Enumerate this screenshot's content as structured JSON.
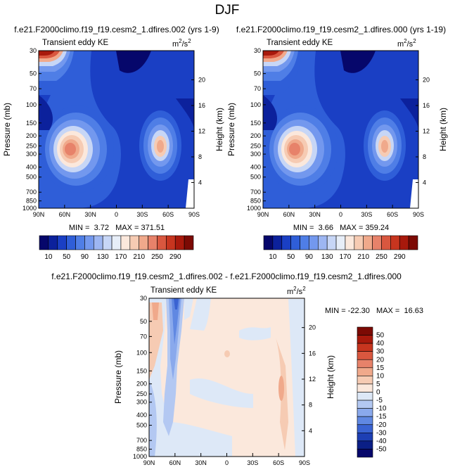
{
  "page": {
    "title": "DJF"
  },
  "chart_data": [
    {
      "type": "heatmap",
      "id": "top-left",
      "title": "f.e21.F2000climo.f19_f19.cesm2_1.dfires.002 (yrs 1-9)",
      "subtitle": "Transient eddy KE",
      "units_prefix": "m",
      "units_exp": "2",
      "units_suffix": "/s",
      "units_exp2": "2",
      "ylabel": "Pressure (mb)",
      "y2label": "Height (km)",
      "x_ticks": [
        "90N",
        "60N",
        "30N",
        "0",
        "30S",
        "60S",
        "90S"
      ],
      "y_ticks": [
        "30",
        "50",
        "70",
        "100",
        "150",
        "200",
        "250",
        "300",
        "400",
        "500",
        "700",
        "850",
        "1000"
      ],
      "y2_ticks": [
        "20",
        "16",
        "12",
        "8",
        "4"
      ],
      "stats": "MIN =  3.72   MAX = 371.51",
      "min": 3.72,
      "max": 371.51
    },
    {
      "type": "heatmap",
      "id": "top-right",
      "title": "f.e21.F2000climo.f19_f19.cesm2_1.dfires.000 (yrs 1-19)",
      "subtitle": "Transient eddy KE",
      "units_prefix": "m",
      "units_exp": "2",
      "units_suffix": "/s",
      "units_exp2": "2",
      "ylabel": "Pressure (mb)",
      "y2label": "Height (km)",
      "x_ticks": [
        "90N",
        "60N",
        "30N",
        "0",
        "30S",
        "60S",
        "90S"
      ],
      "y_ticks": [
        "30",
        "50",
        "70",
        "100",
        "150",
        "200",
        "250",
        "300",
        "400",
        "500",
        "700",
        "850",
        "1000"
      ],
      "y2_ticks": [
        "20",
        "16",
        "12",
        "8",
        "4"
      ],
      "stats": "MIN =  3.66   MAX = 359.24",
      "min": 3.66,
      "max": 359.24
    },
    {
      "type": "heatmap",
      "id": "bottom-diff",
      "title": "f.e21.F2000climo.f19_f19.cesm2_1.dfires.002 - f.e21.F2000climo.f19_f19.cesm2_1.dfires.000",
      "subtitle": "Transient eddy KE",
      "units_prefix": "m",
      "units_exp": "2",
      "units_suffix": "/s",
      "units_exp2": "2",
      "ylabel": "Pressure (mb)",
      "y2label": "Height (km)",
      "x_ticks": [
        "90N",
        "60N",
        "30N",
        "0",
        "30S",
        "60S",
        "90S"
      ],
      "y_ticks": [
        "30",
        "50",
        "70",
        "100",
        "150",
        "200",
        "250",
        "300",
        "400",
        "500",
        "700",
        "850",
        "1000"
      ],
      "y2_ticks": [
        "20",
        "16",
        "12",
        "8",
        "4"
      ],
      "stats": "MIN = -22.30   MAX =  16.63",
      "min": -22.3,
      "max": 16.63
    }
  ],
  "colorbar_top": {
    "labels": [
      "10",
      "50",
      "90",
      "130",
      "170",
      "210",
      "250",
      "290"
    ],
    "colors": [
      "#06076b",
      "#0c219c",
      "#1a3fc4",
      "#2f5ed8",
      "#4f7ee6",
      "#7398ee",
      "#9db6f2",
      "#c7d6f6",
      "#e7eef8",
      "#fbe8dc",
      "#f6cbb3",
      "#f0a98b",
      "#e7826a",
      "#d9573f",
      "#c7351f",
      "#a8190c",
      "#7c0a04"
    ]
  },
  "colorbar_diff": {
    "labels": [
      "50",
      "40",
      "30",
      "20",
      "15",
      "10",
      "5",
      "0",
      "-5",
      "-10",
      "-15",
      "-20",
      "-30",
      "-40",
      "-50"
    ],
    "colors": [
      "#7c0a04",
      "#a8190c",
      "#c7351f",
      "#d9573f",
      "#e7826a",
      "#f0a98b",
      "#f6cbb3",
      "#fbe8dc",
      "#dde8f7",
      "#b3c8f2",
      "#8aa9ec",
      "#6088e2",
      "#3a63d2",
      "#1d3fb4",
      "#0b1f86",
      "#06076b"
    ]
  }
}
